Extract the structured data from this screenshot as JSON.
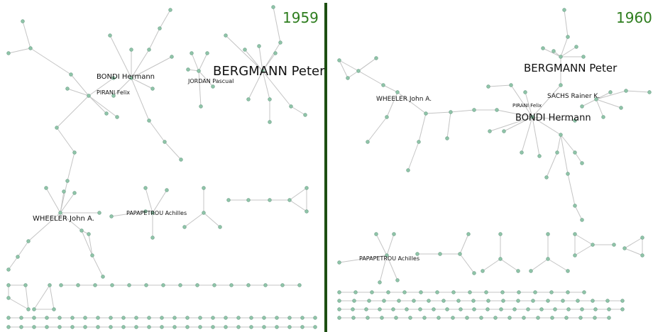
{
  "panels": [
    {
      "year": "1959",
      "labels": [
        "BERGMANN Peter",
        "BONDI Hermann",
        "PIRANI Felix",
        "JORDAN Pascual",
        "WHEELER John A.",
        "PAPAPETROU Achilles"
      ]
    },
    {
      "year": "1960",
      "labels": [
        "BERGMANN Peter",
        "WHEELER John A.",
        "PIRANI Felix",
        "SACHS Rainer K.",
        "BONDI Hermann",
        "PAPAPETROU Achilles"
      ]
    }
  ]
}
